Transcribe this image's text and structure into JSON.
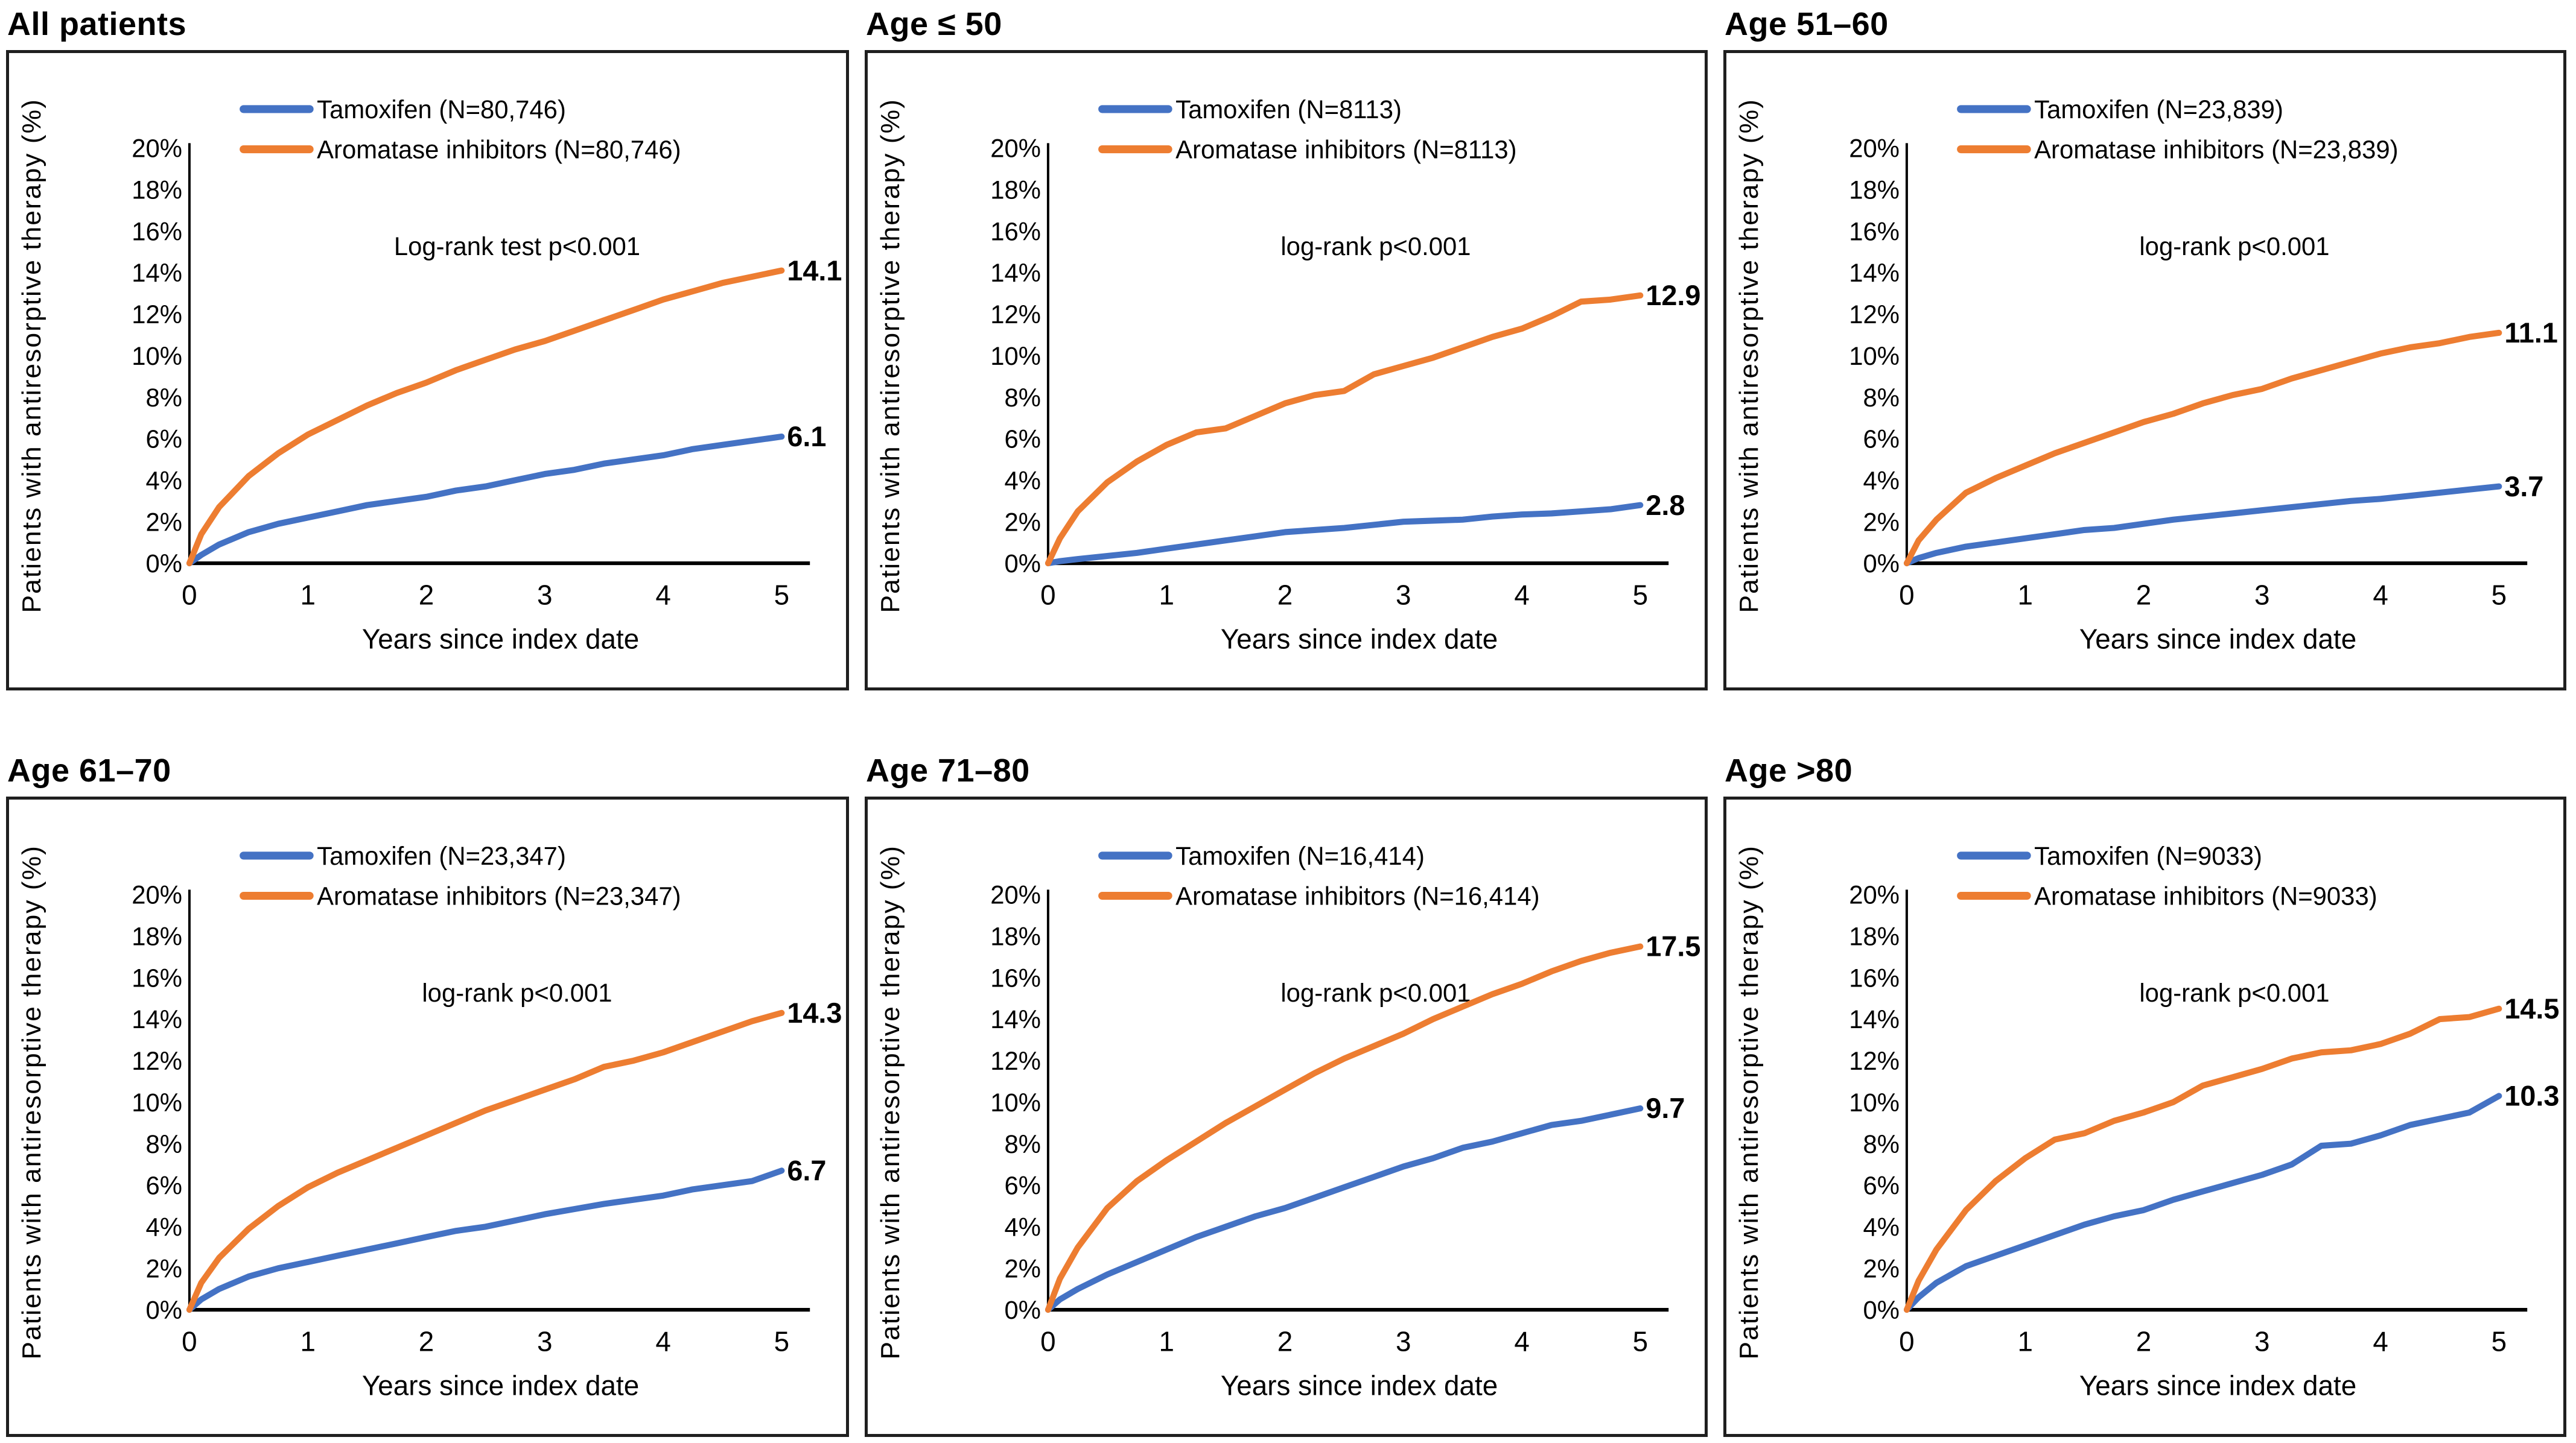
{
  "figure": {
    "y_axis_label": "Patients with antiresorptive therapy (%)",
    "x_axis_label": "Years since index date",
    "y_ticks": [
      "0%",
      "2%",
      "4%",
      "6%",
      "8%",
      "10%",
      "12%",
      "14%",
      "16%",
      "18%",
      "20%"
    ],
    "x_ticks": [
      "0",
      "1",
      "2",
      "3",
      "4",
      "5"
    ],
    "colors": {
      "tamoxifen": "#4472C4",
      "aromatase_inhibitors": "#ED7D31",
      "axis": "#000000",
      "border": "#1f1f1f"
    }
  },
  "chart_data": [
    {
      "type": "line",
      "title": "All patients",
      "p_label": "Log-rank test p<0.001",
      "xlim": [
        0,
        5
      ],
      "ylim": [
        0,
        20
      ],
      "x": [
        0,
        0.1,
        0.25,
        0.5,
        0.75,
        1,
        1.25,
        1.5,
        1.75,
        2,
        2.25,
        2.5,
        2.75,
        3,
        3.25,
        3.5,
        3.75,
        4,
        4.25,
        4.5,
        4.75,
        5
      ],
      "series": [
        {
          "name": "Tamoxifen",
          "legend": "Tamoxifen (N=80,746)",
          "color": "tamoxifen",
          "end_label": "6.1",
          "values": [
            0,
            0.4,
            0.9,
            1.5,
            1.9,
            2.2,
            2.5,
            2.8,
            3.0,
            3.2,
            3.5,
            3.7,
            4.0,
            4.3,
            4.5,
            4.8,
            5.0,
            5.2,
            5.5,
            5.7,
            5.9,
            6.1
          ]
        },
        {
          "name": "Aromatase inhibitors",
          "legend": "Aromatase inhibitors (N=80,746)",
          "color": "aromatase_inhibitors",
          "end_label": "14.1",
          "values": [
            0,
            1.4,
            2.7,
            4.2,
            5.3,
            6.2,
            6.9,
            7.6,
            8.2,
            8.7,
            9.3,
            9.8,
            10.3,
            10.7,
            11.2,
            11.7,
            12.2,
            12.7,
            13.1,
            13.5,
            13.8,
            14.1
          ]
        }
      ]
    },
    {
      "type": "line",
      "title": "Age ≤ 50",
      "p_label": "log-rank p<0.001",
      "xlim": [
        0,
        5
      ],
      "ylim": [
        0,
        20
      ],
      "x": [
        0,
        0.1,
        0.25,
        0.5,
        0.75,
        1,
        1.25,
        1.5,
        1.75,
        2,
        2.25,
        2.5,
        2.75,
        3,
        3.25,
        3.5,
        3.75,
        4,
        4.25,
        4.5,
        4.75,
        5
      ],
      "series": [
        {
          "name": "Tamoxifen",
          "legend": "Tamoxifen (N=8113)",
          "color": "tamoxifen",
          "end_label": "2.8",
          "values": [
            0,
            0.1,
            0.2,
            0.35,
            0.5,
            0.7,
            0.9,
            1.1,
            1.3,
            1.5,
            1.6,
            1.7,
            1.85,
            2.0,
            2.05,
            2.1,
            2.25,
            2.35,
            2.4,
            2.5,
            2.6,
            2.8
          ]
        },
        {
          "name": "Aromatase inhibitors",
          "legend": "Aromatase inhibitors (N=8113)",
          "color": "aromatase_inhibitors",
          "end_label": "12.9",
          "values": [
            0,
            1.2,
            2.5,
            3.9,
            4.9,
            5.7,
            6.3,
            6.5,
            7.1,
            7.7,
            8.1,
            8.3,
            9.1,
            9.5,
            9.9,
            10.4,
            10.9,
            11.3,
            11.9,
            12.6,
            12.7,
            12.9
          ]
        }
      ]
    },
    {
      "type": "line",
      "title": "Age 51–60",
      "p_label": "log-rank p<0.001",
      "xlim": [
        0,
        5
      ],
      "ylim": [
        0,
        20
      ],
      "x": [
        0,
        0.1,
        0.25,
        0.5,
        0.75,
        1,
        1.25,
        1.5,
        1.75,
        2,
        2.25,
        2.5,
        2.75,
        3,
        3.25,
        3.5,
        3.75,
        4,
        4.25,
        4.5,
        4.75,
        5
      ],
      "series": [
        {
          "name": "Tamoxifen",
          "legend": "Tamoxifen (N=23,839)",
          "color": "tamoxifen",
          "end_label": "3.7",
          "values": [
            0,
            0.25,
            0.5,
            0.8,
            1.0,
            1.2,
            1.4,
            1.6,
            1.7,
            1.9,
            2.1,
            2.25,
            2.4,
            2.55,
            2.7,
            2.85,
            3.0,
            3.1,
            3.25,
            3.4,
            3.55,
            3.7
          ]
        },
        {
          "name": "Aromatase inhibitors",
          "legend": "Aromatase inhibitors (N=23,839)",
          "color": "aromatase_inhibitors",
          "end_label": "11.1",
          "values": [
            0,
            1.1,
            2.1,
            3.4,
            4.1,
            4.7,
            5.3,
            5.8,
            6.3,
            6.8,
            7.2,
            7.7,
            8.1,
            8.4,
            8.9,
            9.3,
            9.7,
            10.1,
            10.4,
            10.6,
            10.9,
            11.1
          ]
        }
      ]
    },
    {
      "type": "line",
      "title": "Age 61–70",
      "p_label": "log-rank p<0.001",
      "xlim": [
        0,
        5
      ],
      "ylim": [
        0,
        20
      ],
      "x": [
        0,
        0.1,
        0.25,
        0.5,
        0.75,
        1,
        1.25,
        1.5,
        1.75,
        2,
        2.25,
        2.5,
        2.75,
        3,
        3.25,
        3.5,
        3.75,
        4,
        4.25,
        4.5,
        4.75,
        5
      ],
      "series": [
        {
          "name": "Tamoxifen",
          "legend": "Tamoxifen (N=23,347)",
          "color": "tamoxifen",
          "end_label": "6.7",
          "values": [
            0,
            0.5,
            1.0,
            1.6,
            2.0,
            2.3,
            2.6,
            2.9,
            3.2,
            3.5,
            3.8,
            4.0,
            4.3,
            4.6,
            4.85,
            5.1,
            5.3,
            5.5,
            5.8,
            6.0,
            6.2,
            6.7
          ]
        },
        {
          "name": "Aromatase inhibitors",
          "legend": "Aromatase inhibitors (N=23,347)",
          "color": "aromatase_inhibitors",
          "end_label": "14.3",
          "values": [
            0,
            1.3,
            2.5,
            3.9,
            5.0,
            5.9,
            6.6,
            7.2,
            7.8,
            8.4,
            9.0,
            9.6,
            10.1,
            10.6,
            11.1,
            11.7,
            12.0,
            12.4,
            12.9,
            13.4,
            13.9,
            14.3
          ]
        }
      ]
    },
    {
      "type": "line",
      "title": "Age 71–80",
      "p_label": "log-rank p<0.001",
      "xlim": [
        0,
        5
      ],
      "ylim": [
        0,
        20
      ],
      "x": [
        0,
        0.1,
        0.25,
        0.5,
        0.75,
        1,
        1.25,
        1.5,
        1.75,
        2,
        2.25,
        2.5,
        2.75,
        3,
        3.25,
        3.5,
        3.75,
        4,
        4.25,
        4.5,
        4.75,
        5
      ],
      "series": [
        {
          "name": "Tamoxifen",
          "legend": "Tamoxifen (N=16,414)",
          "color": "tamoxifen",
          "end_label": "9.7",
          "values": [
            0,
            0.5,
            1.0,
            1.7,
            2.3,
            2.9,
            3.5,
            4.0,
            4.5,
            4.9,
            5.4,
            5.9,
            6.4,
            6.9,
            7.3,
            7.8,
            8.1,
            8.5,
            8.9,
            9.1,
            9.4,
            9.7
          ]
        },
        {
          "name": "Aromatase inhibitors",
          "legend": "Aromatase inhibitors (N=16,414)",
          "color": "aromatase_inhibitors",
          "end_label": "17.5",
          "values": [
            0,
            1.5,
            3.0,
            4.9,
            6.2,
            7.2,
            8.1,
            9.0,
            9.8,
            10.6,
            11.4,
            12.1,
            12.7,
            13.3,
            14.0,
            14.6,
            15.2,
            15.7,
            16.3,
            16.8,
            17.2,
            17.5
          ]
        }
      ]
    },
    {
      "type": "line",
      "title": "Age >80",
      "p_label": "log-rank p<0.001",
      "xlim": [
        0,
        5
      ],
      "ylim": [
        0,
        20
      ],
      "x": [
        0,
        0.1,
        0.25,
        0.5,
        0.75,
        1,
        1.25,
        1.5,
        1.75,
        2,
        2.25,
        2.5,
        2.75,
        3,
        3.25,
        3.5,
        3.75,
        4,
        4.25,
        4.5,
        4.75,
        5
      ],
      "series": [
        {
          "name": "Tamoxifen",
          "legend": "Tamoxifen (N=9033)",
          "color": "tamoxifen",
          "end_label": "10.3",
          "values": [
            0,
            0.6,
            1.3,
            2.1,
            2.6,
            3.1,
            3.6,
            4.1,
            4.5,
            4.8,
            5.3,
            5.7,
            6.1,
            6.5,
            7.0,
            7.9,
            8.0,
            8.4,
            8.9,
            9.2,
            9.5,
            10.3
          ]
        },
        {
          "name": "Aromatase inhibitors",
          "legend": "Aromatase inhibitors (N=9033)",
          "color": "aromatase_inhibitors",
          "end_label": "14.5",
          "values": [
            0,
            1.4,
            2.9,
            4.8,
            6.2,
            7.3,
            8.2,
            8.5,
            9.1,
            9.5,
            10.0,
            10.8,
            11.2,
            11.6,
            12.1,
            12.4,
            12.5,
            12.8,
            13.3,
            14.0,
            14.1,
            14.5
          ]
        }
      ]
    }
  ]
}
